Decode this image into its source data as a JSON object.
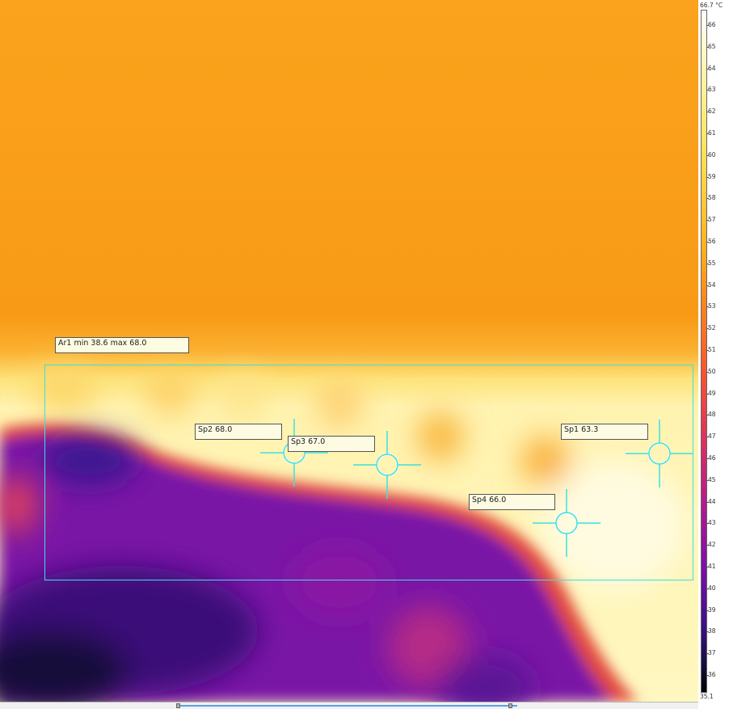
{
  "image": {
    "subject": "thermal camera image",
    "palette": "iron"
  },
  "color_scale": {
    "max_label": "66.7 °C",
    "min_label": "35.1",
    "ticks": [
      "66",
      "65",
      "64",
      "63",
      "62",
      "61",
      "60",
      "59",
      "58",
      "57",
      "56",
      "55",
      "54",
      "53",
      "52",
      "51",
      "50",
      "49",
      "48",
      "47",
      "46",
      "45",
      "44",
      "43",
      "42",
      "41",
      "40",
      "39",
      "38",
      "37",
      "36"
    ]
  },
  "measurements": {
    "area": {
      "label": "Ar1 min 38.6 max 68.0"
    },
    "spots": [
      {
        "label": "Sp1 63.3"
      },
      {
        "label": "Sp2 68.0"
      },
      {
        "label": "Sp3 67.0"
      },
      {
        "label": "Sp4 66.0"
      }
    ],
    "overlay_color": "#3ce0e0"
  }
}
